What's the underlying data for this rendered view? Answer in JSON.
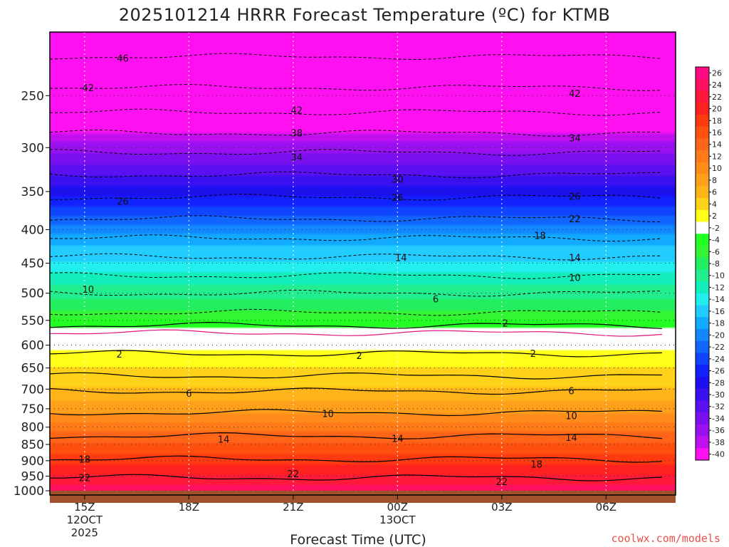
{
  "chart_data": {
    "type": "heatmap",
    "title": "2025101214 HRRR Forecast Temperature (ºC) for KTMB",
    "xlabel": "Forecast Time (UTC)",
    "ylabel": "",
    "credit": "coolwx.com/models",
    "x_ticks": [
      {
        "hour": 15,
        "label": "15Z",
        "date_line1": "12OCT",
        "date_line2": "2025"
      },
      {
        "hour": 18,
        "label": "18Z",
        "date_line1": "",
        "date_line2": ""
      },
      {
        "hour": 21,
        "label": "21Z",
        "date_line1": "",
        "date_line2": ""
      },
      {
        "hour": 24,
        "label": "00Z",
        "date_line1": "13OCT",
        "date_line2": ""
      },
      {
        "hour": 27,
        "label": "03Z",
        "date_line1": "",
        "date_line2": ""
      },
      {
        "hour": 30,
        "label": "06Z",
        "date_line1": "",
        "date_line2": ""
      }
    ],
    "xlim": [
      14,
      32
    ],
    "y_axis": "pressure (hPa), log scale",
    "y_ticks": [
      "250",
      "300",
      "350",
      "400",
      "450",
      "500",
      "550",
      "600",
      "650",
      "700",
      "750",
      "800",
      "850",
      "900",
      "950",
      "1000"
    ],
    "ylim": [
      200,
      1015
    ],
    "surface_pressure_hpa": 1000,
    "level_temperatures": [
      {
        "p": 200,
        "t": -47
      },
      {
        "p": 225,
        "t": -46
      },
      {
        "p": 250,
        "t": -42
      },
      {
        "p": 275,
        "t": -40
      },
      {
        "p": 300,
        "t": -35
      },
      {
        "p": 325,
        "t": -31
      },
      {
        "p": 350,
        "t": -27
      },
      {
        "p": 375,
        "t": -23
      },
      {
        "p": 400,
        "t": -19
      },
      {
        "p": 425,
        "t": -16
      },
      {
        "p": 450,
        "t": -14
      },
      {
        "p": 475,
        "t": -11
      },
      {
        "p": 500,
        "t": -9
      },
      {
        "p": 525,
        "t": -7
      },
      {
        "p": 550,
        "t": -4
      },
      {
        "p": 575,
        "t": -1
      },
      {
        "p": 600,
        "t": 1
      },
      {
        "p": 625,
        "t": 3
      },
      {
        "p": 650,
        "t": 4
      },
      {
        "p": 700,
        "t": 6
      },
      {
        "p": 750,
        "t": 9
      },
      {
        "p": 800,
        "t": 13
      },
      {
        "p": 850,
        "t": 16
      },
      {
        "p": 900,
        "t": 19
      },
      {
        "p": 950,
        "t": 22
      },
      {
        "p": 1000,
        "t": 25
      }
    ],
    "contour_labels": [
      {
        "text": "46",
        "hour": 16.1,
        "p": 219
      },
      {
        "text": "42",
        "hour": 15.1,
        "p": 243
      },
      {
        "text": "42",
        "hour": 21.1,
        "p": 263
      },
      {
        "text": "42",
        "hour": 29.1,
        "p": 248
      },
      {
        "text": "38",
        "hour": 21.1,
        "p": 285
      },
      {
        "text": "34",
        "hour": 21.1,
        "p": 310
      },
      {
        "text": "34",
        "hour": 29.1,
        "p": 290
      },
      {
        "text": "30",
        "hour": 24.0,
        "p": 335
      },
      {
        "text": "26",
        "hour": 16.1,
        "p": 362
      },
      {
        "text": "26",
        "hour": 24.0,
        "p": 357
      },
      {
        "text": "26",
        "hour": 29.1,
        "p": 356
      },
      {
        "text": "22",
        "hour": 29.1,
        "p": 385
      },
      {
        "text": "18",
        "hour": 28.1,
        "p": 408
      },
      {
        "text": "14",
        "hour": 24.1,
        "p": 441
      },
      {
        "text": "14",
        "hour": 29.1,
        "p": 441
      },
      {
        "text": "10",
        "hour": 15.1,
        "p": 493
      },
      {
        "text": "10",
        "hour": 29.1,
        "p": 473
      },
      {
        "text": "6",
        "hour": 25.1,
        "p": 510
      },
      {
        "text": "2",
        "hour": 27.1,
        "p": 555
      },
      {
        "text": "2",
        "hour": 16.0,
        "p": 619
      },
      {
        "text": "2",
        "hour": 22.9,
        "p": 622
      },
      {
        "text": "2",
        "hour": 27.9,
        "p": 617
      },
      {
        "text": "6",
        "hour": 18.0,
        "p": 710
      },
      {
        "text": "6",
        "hour": 29.0,
        "p": 704
      },
      {
        "text": "10",
        "hour": 22.0,
        "p": 762
      },
      {
        "text": "10",
        "hour": 29.0,
        "p": 768
      },
      {
        "text": "14",
        "hour": 19.0,
        "p": 834
      },
      {
        "text": "14",
        "hour": 24.0,
        "p": 832
      },
      {
        "text": "14",
        "hour": 29.0,
        "p": 829
      },
      {
        "text": "18",
        "hour": 15.0,
        "p": 895
      },
      {
        "text": "18",
        "hour": 28.0,
        "p": 911
      },
      {
        "text": "22",
        "hour": 15.0,
        "p": 955
      },
      {
        "text": "22",
        "hour": 21.0,
        "p": 942
      },
      {
        "text": "22",
        "hour": 27.0,
        "p": 968
      }
    ],
    "colorbar": {
      "ticks": [
        "26",
        "24",
        "22",
        "20",
        "18",
        "16",
        "14",
        "12",
        "10",
        "8",
        "6",
        "4",
        "2",
        "-2",
        "-4",
        "-6",
        "-8",
        "-10",
        "-12",
        "-14",
        "-16",
        "-18",
        "-20",
        "-22",
        "-24",
        "-26",
        "-28",
        "-30",
        "-32",
        "-34",
        "-36",
        "-38",
        "-40"
      ],
      "colors": [
        "#ff0a82",
        "#ff1060",
        "#ff1a3a",
        "#ff2020",
        "#ff3a10",
        "#ff5010",
        "#ff6418",
        "#ff7a18",
        "#ff8c1a",
        "#ffa01a",
        "#ffb41a",
        "#ffd21a",
        "#ffff1a",
        "#ffffff",
        "#22ff22",
        "#33f533",
        "#22ee60",
        "#22ee90",
        "#11eebb",
        "#22eeee",
        "#22ccff",
        "#11aaff",
        "#1188ff",
        "#1166ff",
        "#1144ff",
        "#1122ff",
        "#1c10f0",
        "#3a10f0",
        "#5a10f0",
        "#7a10f0",
        "#9a10f0",
        "#c010f0",
        "#ff10f0"
      ]
    }
  }
}
